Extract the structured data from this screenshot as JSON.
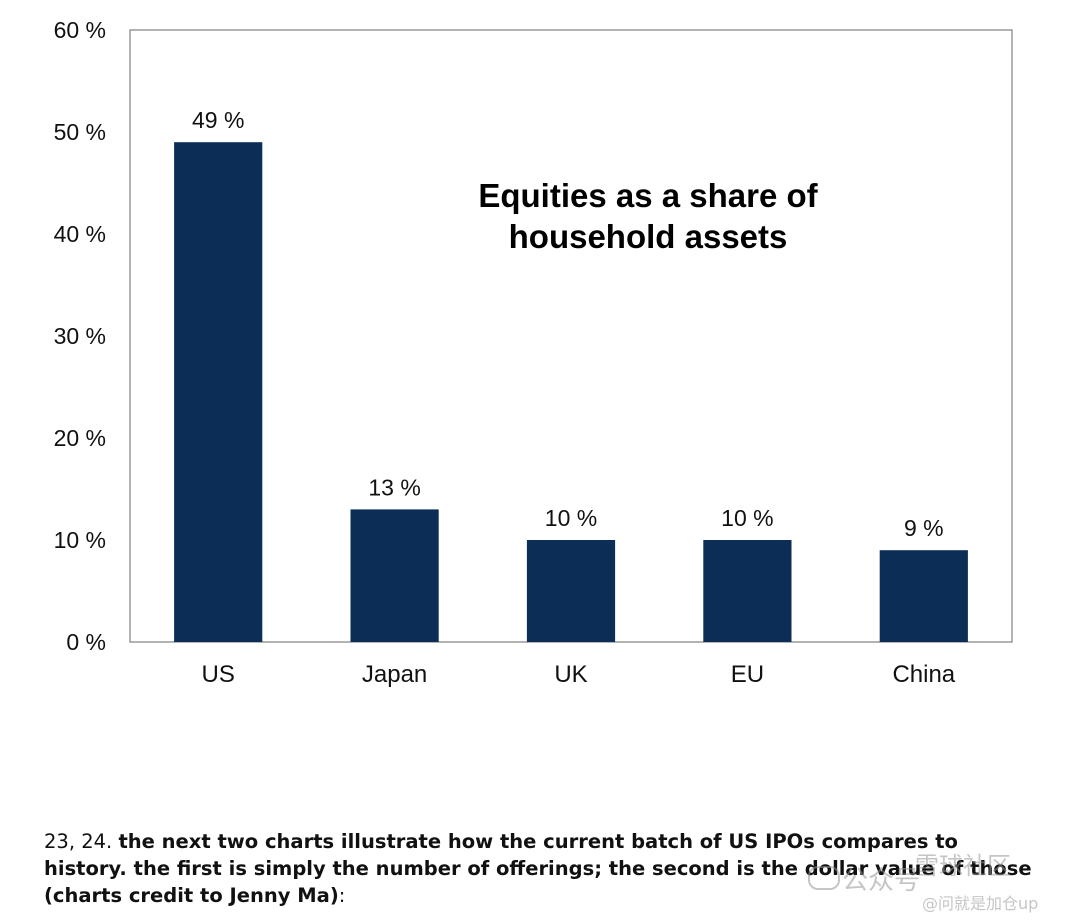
{
  "chart_data": {
    "type": "bar",
    "title_lines": [
      "Equities as a share of",
      "household assets"
    ],
    "categories": [
      "US",
      "Japan",
      "UK",
      "EU",
      "China"
    ],
    "values": [
      49,
      13,
      10,
      10,
      9
    ],
    "data_labels": [
      "49 %",
      "13 %",
      "10 %",
      "10 %",
      "9 %"
    ],
    "ylim": [
      0,
      60
    ],
    "yticks": [
      0,
      10,
      20,
      30,
      40,
      50,
      60
    ],
    "ytick_labels": [
      "0 %",
      "10 %",
      "20 %",
      "30 %",
      "40 %",
      "50 %",
      "60 %"
    ],
    "xlabel": "",
    "ylabel": "",
    "grid": false,
    "bar_color": "#0b2d56"
  },
  "caption": {
    "number": "23, 24.",
    "text": "the next two charts illustrate how the current batch of US IPOs compares to history. the first is simply the number of offerings; the second is the dollar value of those (charts credit to Jenny Ma)",
    "end": ":"
  },
  "watermark": {
    "text": "公众号",
    "sub": "@问就是加仓up",
    "top": "雪球社区"
  }
}
